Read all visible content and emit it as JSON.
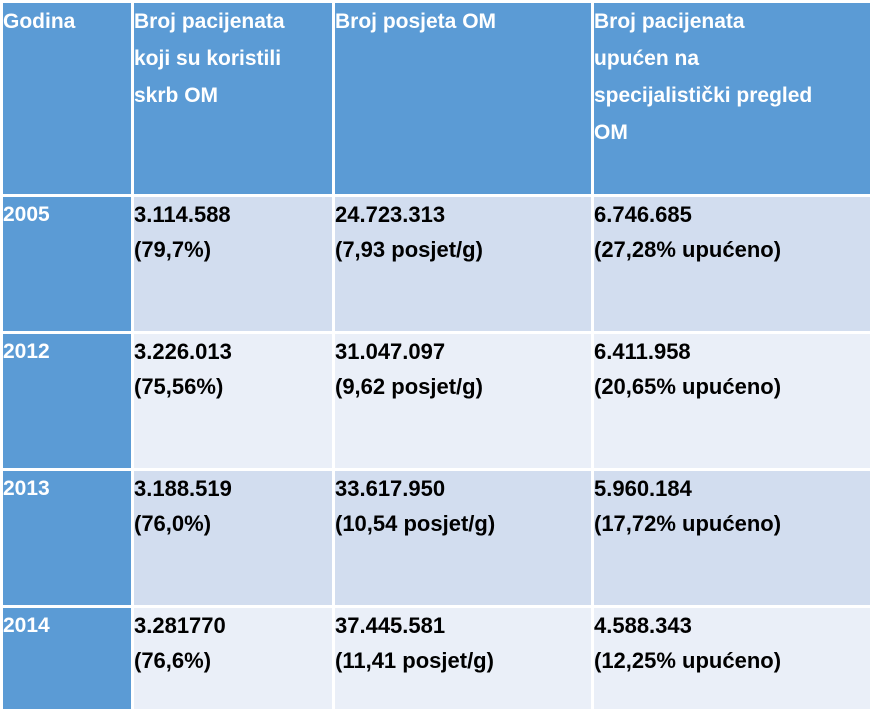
{
  "table": {
    "headers": [
      "Godina",
      "Broj pacijenata koji su koristili skrb OM",
      "Broj posjeta OM",
      "Broj pacijenata upućen na specijalistički pregled OM"
    ],
    "header_lines": [
      [
        "Godina"
      ],
      [
        "Broj pacijenata",
        "koji su koristili",
        "skrb OM"
      ],
      [
        "Broj posjeta OM"
      ],
      [
        "Broj pacijenata",
        "upućen na",
        "specijalistički pregled",
        "OM"
      ]
    ],
    "rows": [
      {
        "year": "2005",
        "patients": "3.114.588",
        "patients_pct": "(79,7%)",
        "visits": "24.723.313",
        "visits_rate": "(7,93 posjet/g)",
        "referred": "6.746.685",
        "referred_pct": "(27,28% upućeno)"
      },
      {
        "year": "2012",
        "patients": "3.226.013",
        "patients_pct": "(75,56%)",
        "visits": "31.047.097",
        "visits_rate": "(9,62 posjet/g)",
        "referred": "6.411.958",
        "referred_pct": "(20,65% upućeno)"
      },
      {
        "year": "2013",
        "patients": "3.188.519",
        "patients_pct": "(76,0%)",
        "visits": "33.617.950",
        "visits_rate": "(10,54 posjet/g)",
        "referred": "5.960.184",
        "referred_pct": "(17,72% upućeno)"
      },
      {
        "year": "2014",
        "patients": "3.281770",
        "patients_pct": "(76,6%)",
        "visits": "37.445.581",
        "visits_rate": "(11,41 posjet/g)",
        "referred": "4.588.343",
        "referred_pct": "(12,25% upućeno)"
      }
    ]
  },
  "colors": {
    "header_bg": "#5b9bd5",
    "row_dark": "#d2ddef",
    "row_light": "#eaeff8",
    "header_text": "#ffffff",
    "body_text": "#000000"
  }
}
